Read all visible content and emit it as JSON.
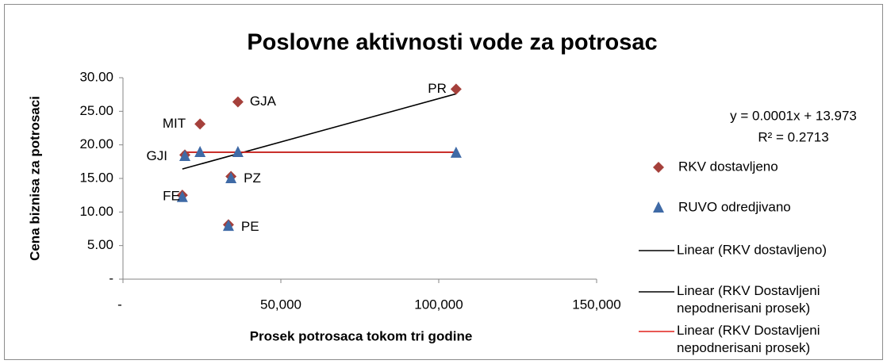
{
  "chart_data": {
    "type": "scatter",
    "title": "Poslovne aktivnosti vode za potrosac",
    "x_label": "Prosek potrosaca tokom tri godine",
    "y_label": "Cena biznisa za potrosaci",
    "xlim": [
      0,
      150000
    ],
    "ylim": [
      0,
      30
    ],
    "xticks": [
      {
        "value": 0,
        "label": "-"
      },
      {
        "value": 50000,
        "label": "50,000"
      },
      {
        "value": 100000,
        "label": "100,000"
      },
      {
        "value": 150000,
        "label": "150,000"
      }
    ],
    "yticks": [
      {
        "value": 0,
        "label": "-"
      },
      {
        "value": 5,
        "label": "5.00"
      },
      {
        "value": 10,
        "label": "10.00"
      },
      {
        "value": 15,
        "label": "15.00"
      },
      {
        "value": 20,
        "label": "20.00"
      },
      {
        "value": 25,
        "label": "25.00"
      },
      {
        "value": 30,
        "label": "30.00"
      }
    ],
    "grid": false,
    "legend": "right",
    "point_labels": [
      "PR",
      "GJA",
      "MIT",
      "GJI",
      "PZ",
      "FE",
      "PE"
    ],
    "series": [
      {
        "name": "RKV dostavljeno",
        "color": "#a5403b",
        "marker": "diamond",
        "x": [
          105500,
          36400,
          24400,
          19600,
          34200,
          18800,
          33400
        ],
        "values": [
          28.3,
          26.4,
          23.1,
          18.5,
          15.3,
          12.5,
          8.1
        ]
      },
      {
        "name": "RUVO odredjivano",
        "color": "#3f6aa6",
        "marker": "triangle",
        "x": [
          105500,
          36400,
          24400,
          19600,
          34200,
          18800,
          33400
        ],
        "values": [
          18.8,
          18.9,
          18.9,
          18.3,
          15.0,
          12.2,
          7.9
        ]
      }
    ],
    "trendlines": [
      {
        "name": "Linear (RKV dostavljeno)",
        "color": "#000000",
        "x": [
          18800,
          105500
        ],
        "values": [
          16.4,
          27.6
        ]
      },
      {
        "name": "Linear (RKV Dostavljeni nepodnerisani prosek)",
        "color": "#000000",
        "x": [
          18800,
          105500
        ],
        "values": [
          18.9,
          18.9
        ]
      },
      {
        "name": "Linear (RKV Dostavljeni nepodnerisani prosek)",
        "color": "#e0201b",
        "x": [
          18800,
          105500
        ],
        "values": [
          18.9,
          18.9
        ]
      }
    ],
    "annotations": [
      "y = 0.0001x + 13.973",
      "R² = 0.2713"
    ]
  }
}
